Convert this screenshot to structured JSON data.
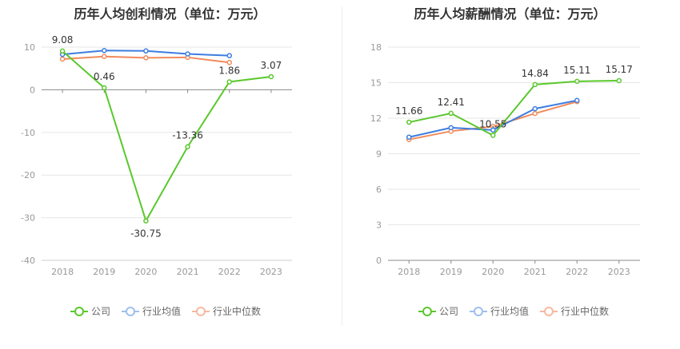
{
  "chart_data": [
    {
      "type": "line",
      "title": "历年人均创利情况（单位：万元）",
      "categories": [
        "2018",
        "2019",
        "2020",
        "2021",
        "2022",
        "2023"
      ],
      "ylim": [
        -40,
        10
      ],
      "yticks": [
        -40,
        -30,
        -20,
        -10,
        0,
        10
      ],
      "series": [
        {
          "name": "公司",
          "values": [
            9.08,
            0.46,
            -30.75,
            -13.36,
            1.86,
            3.07
          ],
          "color": "#5ac82c",
          "labels": [
            "9.08",
            "0.46",
            "-30.75",
            "-13.36",
            "1.86",
            "3.07"
          ]
        },
        {
          "name": "行业均值",
          "values": [
            8.3,
            9.2,
            9.1,
            8.4,
            8.0,
            null
          ],
          "color": "#3d7de0"
        },
        {
          "name": "行业中位数",
          "values": [
            7.2,
            7.8,
            7.5,
            7.6,
            6.4,
            null
          ],
          "color": "#f28a5c"
        }
      ]
    },
    {
      "type": "line",
      "title": "历年人均薪酬情况（单位：万元）",
      "categories": [
        "2018",
        "2019",
        "2020",
        "2021",
        "2022",
        "2023"
      ],
      "ylim": [
        0,
        18
      ],
      "yticks": [
        0,
        3,
        6,
        9,
        12,
        15,
        18
      ],
      "series": [
        {
          "name": "公司",
          "values": [
            11.66,
            12.41,
            10.55,
            14.84,
            15.11,
            15.17
          ],
          "color": "#5ac82c",
          "labels": [
            "11.66",
            "12.41",
            "10.55",
            "14.84",
            "15.11",
            "15.17"
          ]
        },
        {
          "name": "行业均值",
          "values": [
            10.4,
            11.2,
            11.0,
            12.8,
            13.5,
            null
          ],
          "color": "#3d7de0"
        },
        {
          "name": "行业中位数",
          "values": [
            10.2,
            10.9,
            11.3,
            12.4,
            13.4,
            null
          ],
          "color": "#f28a5c"
        }
      ]
    }
  ],
  "legend": [
    {
      "label": "公司",
      "color": "#5ac82c"
    },
    {
      "label": "行业均值",
      "color": "#9fbfee"
    },
    {
      "label": "行业中位数",
      "color": "#f7b9a0"
    }
  ]
}
